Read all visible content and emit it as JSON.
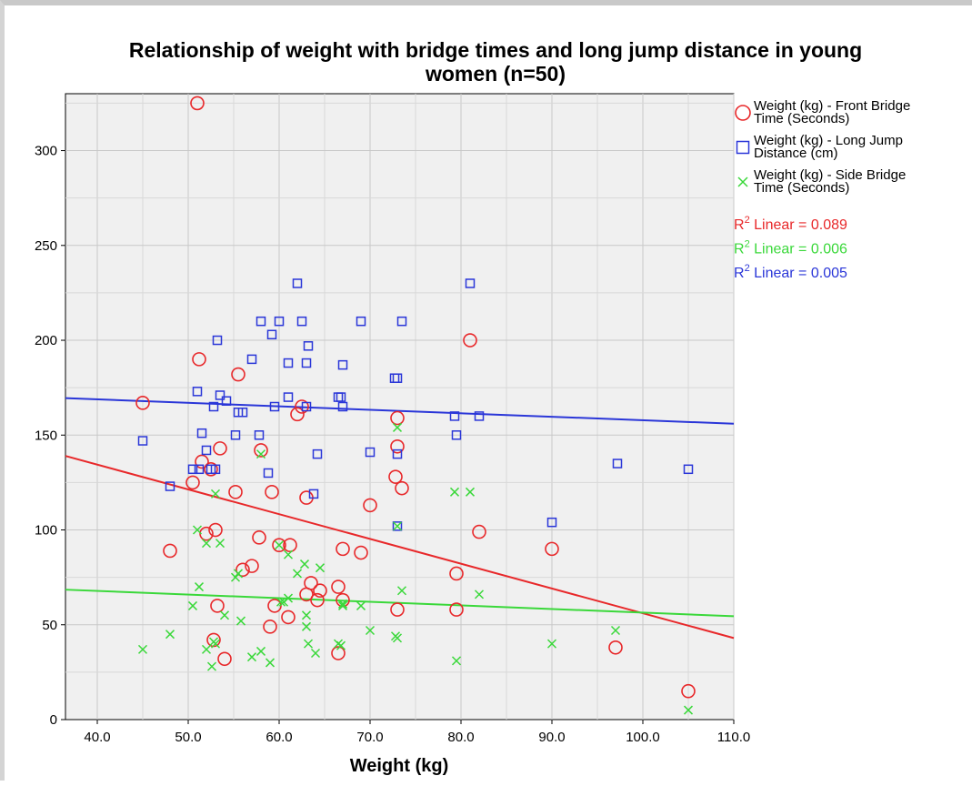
{
  "chart_data": {
    "type": "scatter",
    "title": [
      "Relationship of weight with bridge times and long jump distance in young",
      "women (n=50)"
    ],
    "xlabel": "Weight (kg)",
    "ylabel": "",
    "xlim": [
      36.5,
      110
    ],
    "ylim": [
      0,
      330
    ],
    "xticks": [
      40,
      50,
      60,
      70,
      80,
      90,
      100,
      110
    ],
    "xtick_labels": [
      "40.0",
      "50.0",
      "60.0",
      "70.0",
      "80.0",
      "90.0",
      "100.0",
      "110.0"
    ],
    "yticks": [
      0,
      50,
      100,
      150,
      200,
      250,
      300
    ],
    "ytick_labels": [
      "0",
      "50",
      "100",
      "150",
      "200",
      "250",
      "300"
    ],
    "grid": true,
    "legend_position": "right",
    "series": [
      {
        "name": "Weight (kg) - Front Bridge Time (Seconds)",
        "legend_lines": [
          "Weight (kg) - Front Bridge",
          "Time (Seconds)"
        ],
        "marker": "circle",
        "color": "#e8282a",
        "points": [
          [
            51,
            325
          ],
          [
            81,
            200
          ],
          [
            51.2,
            190
          ],
          [
            55.5,
            182
          ],
          [
            45,
            167
          ],
          [
            62.5,
            165
          ],
          [
            62,
            161
          ],
          [
            73,
            159
          ],
          [
            73,
            144
          ],
          [
            53.5,
            143
          ],
          [
            58,
            142
          ],
          [
            51.5,
            136
          ],
          [
            72.8,
            128
          ],
          [
            50.5,
            125
          ],
          [
            73.5,
            122
          ],
          [
            55.2,
            120
          ],
          [
            59.2,
            120
          ],
          [
            63,
            117
          ],
          [
            70,
            113
          ],
          [
            82,
            99
          ],
          [
            53,
            100
          ],
          [
            52,
            98
          ],
          [
            57.8,
            96
          ],
          [
            61.2,
            92
          ],
          [
            60,
            92
          ],
          [
            48,
            89
          ],
          [
            90,
            90
          ],
          [
            67,
            90
          ],
          [
            69,
            88
          ],
          [
            57,
            81
          ],
          [
            56,
            79
          ],
          [
            79.5,
            77
          ],
          [
            63.5,
            72
          ],
          [
            66.5,
            70
          ],
          [
            63,
            66
          ],
          [
            64.5,
            68
          ],
          [
            64.2,
            63
          ],
          [
            67,
            63
          ],
          [
            53.2,
            60
          ],
          [
            59.5,
            60
          ],
          [
            73,
            58
          ],
          [
            79.5,
            58
          ],
          [
            61,
            54
          ],
          [
            59,
            49
          ],
          [
            52.8,
            42
          ],
          [
            97,
            38
          ],
          [
            66.5,
            35
          ],
          [
            54,
            32
          ],
          [
            105,
            15
          ],
          [
            52.5,
            132
          ]
        ]
      },
      {
        "name": "Weight (kg) - Long Jump Distance (cm)",
        "legend_lines": [
          "Weight (kg) - Long Jump",
          "Distance (cm)"
        ],
        "marker": "square",
        "color": "#2a36d8",
        "points": [
          [
            62,
            230
          ],
          [
            81,
            230
          ],
          [
            58,
            210
          ],
          [
            60,
            210
          ],
          [
            62.5,
            210
          ],
          [
            69,
            210
          ],
          [
            73.5,
            210
          ],
          [
            59.2,
            203
          ],
          [
            53.2,
            200
          ],
          [
            63.2,
            197
          ],
          [
            57,
            190
          ],
          [
            61,
            188
          ],
          [
            63,
            188
          ],
          [
            67,
            187
          ],
          [
            72.7,
            180
          ],
          [
            73,
            180
          ],
          [
            51,
            173
          ],
          [
            53.5,
            171
          ],
          [
            54.2,
            168
          ],
          [
            61,
            170
          ],
          [
            66.5,
            170
          ],
          [
            66.8,
            170
          ],
          [
            52.8,
            165
          ],
          [
            59.5,
            165
          ],
          [
            63,
            165
          ],
          [
            67,
            165
          ],
          [
            55.5,
            162
          ],
          [
            56,
            162
          ],
          [
            79.3,
            160
          ],
          [
            82,
            160
          ],
          [
            45,
            147
          ],
          [
            51.5,
            151
          ],
          [
            55.2,
            150
          ],
          [
            57.8,
            150
          ],
          [
            79.5,
            150
          ],
          [
            52,
            142
          ],
          [
            64.2,
            140
          ],
          [
            70,
            141
          ],
          [
            73,
            140
          ],
          [
            50.5,
            132
          ],
          [
            51.2,
            132
          ],
          [
            52.5,
            132
          ],
          [
            53,
            132
          ],
          [
            58.8,
            130
          ],
          [
            97.2,
            135
          ],
          [
            105,
            132
          ],
          [
            48,
            123
          ],
          [
            63.8,
            119
          ],
          [
            90,
            104
          ],
          [
            73,
            102
          ]
        ]
      },
      {
        "name": "Weight (kg) - Side Bridge Time (Seconds)",
        "legend_lines": [
          "Weight (kg) - Side Bridge",
          "Time (Seconds)"
        ],
        "marker": "x",
        "color": "#3ad83a",
        "points": [
          [
            73,
            154
          ],
          [
            58,
            140
          ],
          [
            79.3,
            120
          ],
          [
            81,
            120
          ],
          [
            53,
            119
          ],
          [
            73,
            102
          ],
          [
            51,
            100
          ],
          [
            52,
            93
          ],
          [
            53.5,
            93
          ],
          [
            60,
            92
          ],
          [
            61,
            87
          ],
          [
            62.8,
            82
          ],
          [
            64.5,
            80
          ],
          [
            62,
            77
          ],
          [
            55.5,
            77
          ],
          [
            55.2,
            75
          ],
          [
            51.2,
            70
          ],
          [
            73.5,
            68
          ],
          [
            82,
            66
          ],
          [
            61,
            64
          ],
          [
            60.2,
            62
          ],
          [
            50.5,
            60
          ],
          [
            67,
            60
          ],
          [
            69,
            60
          ],
          [
            63,
            55
          ],
          [
            54,
            55
          ],
          [
            55.8,
            52
          ],
          [
            63,
            49
          ],
          [
            48,
            45
          ],
          [
            70,
            47
          ],
          [
            97,
            47
          ],
          [
            72.8,
            44
          ],
          [
            73,
            43
          ],
          [
            52.8,
            41
          ],
          [
            63.2,
            40
          ],
          [
            53,
            40
          ],
          [
            66.5,
            40
          ],
          [
            66.8,
            39
          ],
          [
            45,
            37
          ],
          [
            52,
            37
          ],
          [
            58,
            36
          ],
          [
            64,
            35
          ],
          [
            57,
            33
          ],
          [
            59,
            30
          ],
          [
            79.5,
            31
          ],
          [
            90,
            40
          ],
          [
            52.6,
            28
          ],
          [
            60.5,
            62
          ],
          [
            67,
            61
          ],
          [
            105,
            5
          ]
        ]
      }
    ],
    "fit_lines": [
      {
        "label": "Linear",
        "r2_prefix": "R",
        "r2_text": " Linear = 0.089",
        "color": "#e8282a",
        "x": [
          36.5,
          110
        ],
        "y": [
          139,
          43
        ]
      },
      {
        "label": "Linear",
        "r2_prefix": "R",
        "r2_text": " Linear = 0.006",
        "color": "#3ad83a",
        "x": [
          36.5,
          110
        ],
        "y": [
          68.5,
          54.5
        ]
      },
      {
        "label": "Linear",
        "r2_prefix": "R",
        "r2_text": " Linear = 0.005",
        "color": "#2a36d8",
        "x": [
          36.5,
          110
        ],
        "y": [
          169.5,
          156
        ]
      }
    ],
    "r2_superscript": "2"
  }
}
